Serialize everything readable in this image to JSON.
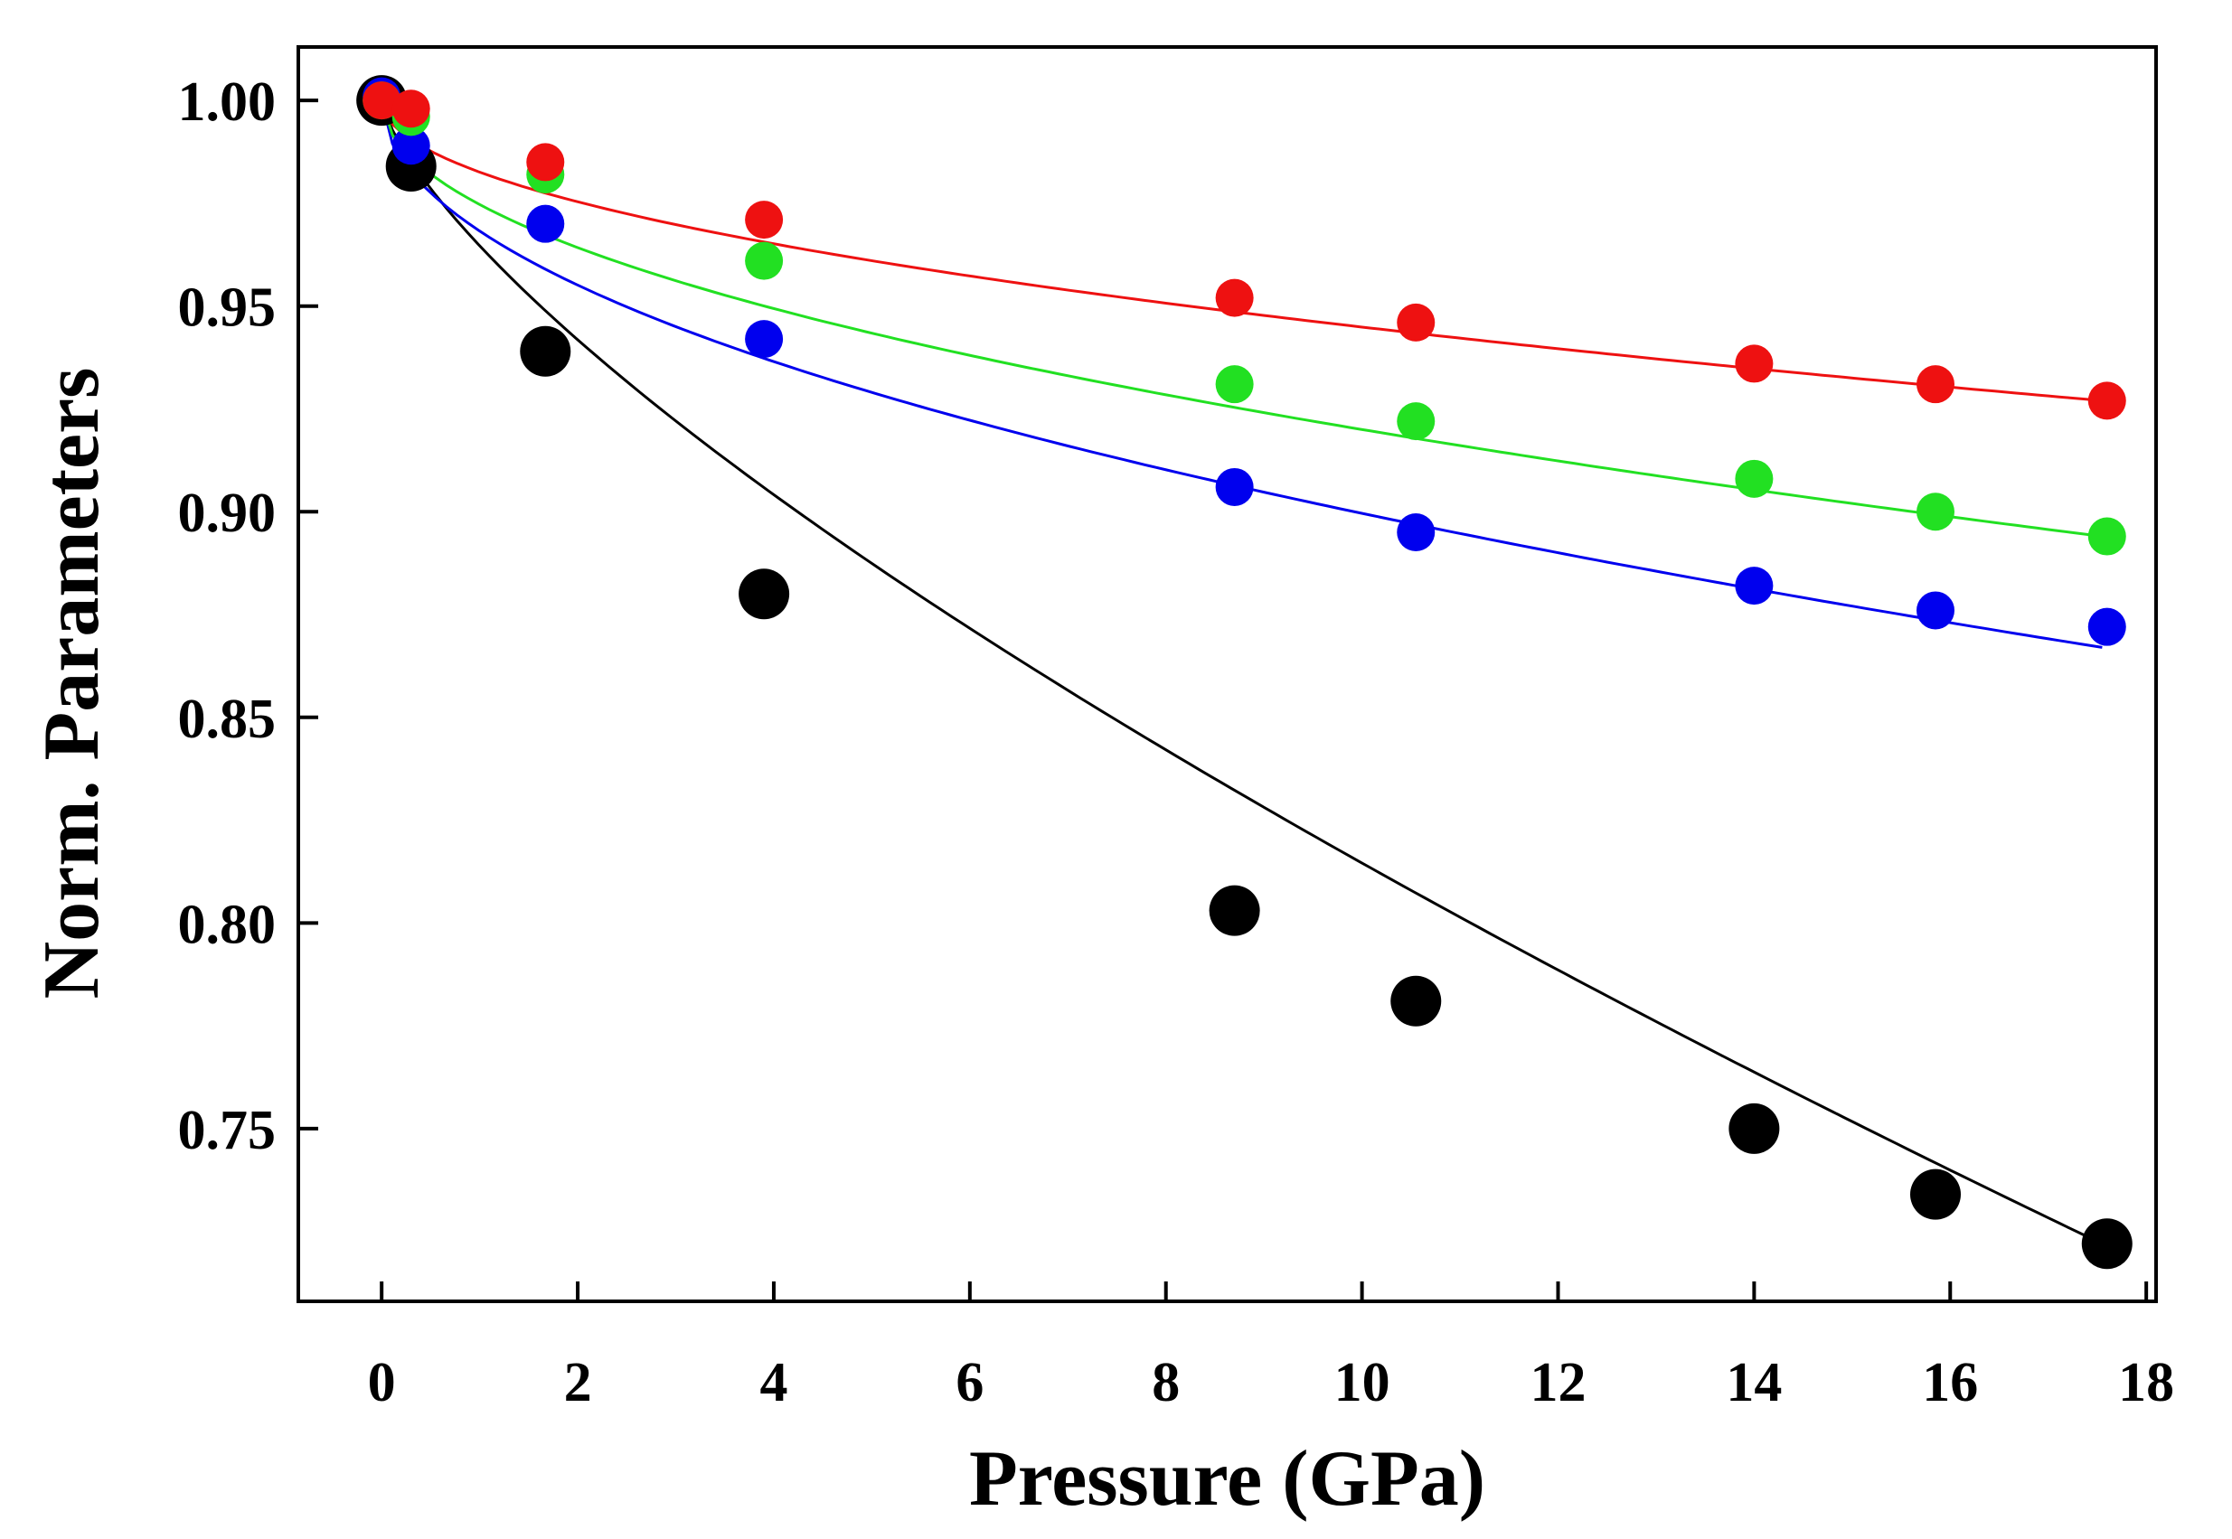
{
  "chart_data": {
    "type": "scatter",
    "title": "",
    "xlabel": "Pressure (GPa)",
    "ylabel": "Norm. Parameters",
    "xlim": [
      -0.85,
      18.1
    ],
    "ylim": [
      0.708,
      1.013
    ],
    "xticks": [
      0,
      2,
      4,
      6,
      8,
      10,
      12,
      14,
      16,
      18
    ],
    "xtick_labels": [
      "0",
      "2",
      "4",
      "6",
      "8",
      "10",
      "12",
      "14",
      "16",
      "18"
    ],
    "yticks": [
      0.75,
      0.8,
      0.85,
      0.9,
      0.95,
      1.0
    ],
    "ytick_labels": [
      "0.75",
      "0.80",
      "0.85",
      "0.90",
      "0.95",
      "1.00"
    ],
    "grid": false,
    "legend": "none",
    "series": [
      {
        "name": "black",
        "color": "#000000",
        "marker_size": "large",
        "x": [
          0.0,
          0.3,
          1.67,
          3.9,
          8.7,
          10.55,
          14.0,
          15.85,
          17.6
        ],
        "y": [
          1.0,
          0.984,
          0.939,
          0.88,
          0.803,
          0.781,
          0.75,
          0.734,
          0.722
        ],
        "fit": {
          "x0": 0.0,
          "x1": 17.55,
          "y0": 1.0,
          "y1": 0.722
        }
      },
      {
        "name": "blue",
        "color": "#0000ee",
        "marker_size": "small",
        "x": [
          0.0,
          0.3,
          1.67,
          3.9,
          8.7,
          10.55,
          14.0,
          15.85,
          17.6
        ],
        "y": [
          1.001,
          0.989,
          0.97,
          0.942,
          0.906,
          0.895,
          0.882,
          0.876,
          0.872
        ],
        "fit": {
          "x0": 0.0,
          "x1": 17.55,
          "y0": 1.0,
          "y1": 0.867
        }
      },
      {
        "name": "green",
        "color": "#22e022",
        "marker_size": "small",
        "x": [
          0.0,
          0.3,
          1.67,
          3.9,
          8.7,
          10.55,
          14.0,
          15.85,
          17.6
        ],
        "y": [
          1.0,
          0.996,
          0.982,
          0.961,
          0.931,
          0.922,
          0.908,
          0.9,
          0.894
        ],
        "fit": {
          "x0": 0.0,
          "x1": 17.55,
          "y0": 1.0,
          "y1": 0.894
        }
      },
      {
        "name": "red",
        "color": "#ee1111",
        "marker_size": "small",
        "x": [
          0.0,
          0.3,
          1.67,
          3.9,
          8.7,
          10.55,
          14.0,
          15.85,
          17.6
        ],
        "y": [
          1.0,
          0.998,
          0.985,
          0.971,
          0.952,
          0.946,
          0.936,
          0.931,
          0.927
        ],
        "fit": {
          "x0": 0.0,
          "x1": 17.55,
          "y0": 1.0,
          "y1": 0.927
        }
      }
    ]
  }
}
